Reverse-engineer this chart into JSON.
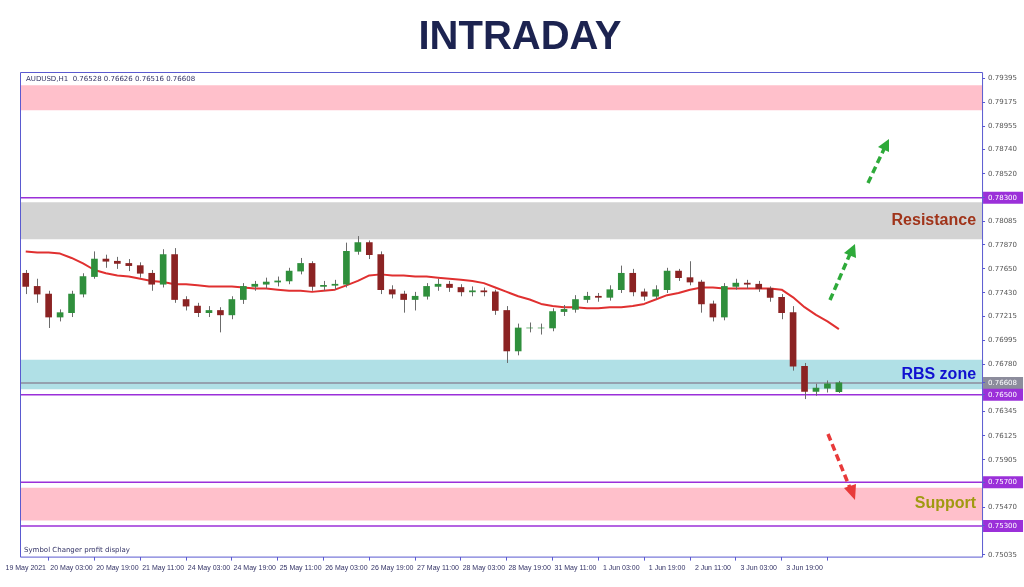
{
  "chart_data": {
    "type": "candlestick",
    "title": "INTRADAY",
    "categories": [
      "19 May 2021",
      null,
      null,
      null,
      "20 May 03:00",
      null,
      null,
      null,
      "20 May 19:00",
      null,
      null,
      null,
      "21 May 11:00",
      null,
      null,
      null,
      "24 May 03:00",
      null,
      null,
      null,
      "24 May 19:00",
      null,
      null,
      null,
      "25 May 11:00",
      null,
      null,
      null,
      "26 May 03:00",
      null,
      null,
      null,
      "26 May 19:00",
      null,
      null,
      null,
      "27 May 11:00",
      null,
      null,
      null,
      "28 May 03:00",
      null,
      null,
      null,
      "28 May 19:00",
      null,
      null,
      null,
      "31 May 11:00",
      null,
      null,
      null,
      "1 Jun 03:00",
      null,
      null,
      null,
      "1 Jun 19:00",
      null,
      null,
      null,
      "2 Jun 11:00",
      null,
      null,
      null,
      "3 Jun 03:00",
      null,
      null,
      null,
      "3 Jun 19:00",
      null,
      null,
      null
    ],
    "ohlc": [
      [
        0.7761,
        0.7764,
        0.7742,
        0.7749
      ],
      [
        0.7749,
        0.7756,
        0.7734,
        0.7742
      ],
      [
        0.7742,
        0.7745,
        0.7711,
        0.7721
      ],
      [
        0.7721,
        0.7728,
        0.7717,
        0.7725
      ],
      [
        0.7725,
        0.7745,
        0.7721,
        0.7742
      ],
      [
        0.7742,
        0.7761,
        0.7739,
        0.7758
      ],
      [
        0.7758,
        0.7781,
        0.7756,
        0.7774
      ],
      [
        0.7774,
        0.7778,
        0.7766,
        0.7772
      ],
      [
        0.7772,
        0.7776,
        0.7765,
        0.777
      ],
      [
        0.777,
        0.7774,
        0.7763,
        0.7768
      ],
      [
        0.7768,
        0.7771,
        0.7757,
        0.7761
      ],
      [
        0.7761,
        0.7764,
        0.7745,
        0.7751
      ],
      [
        0.7751,
        0.7783,
        0.7748,
        0.7778
      ],
      [
        0.7778,
        0.7784,
        0.7734,
        0.7737
      ],
      [
        0.7737,
        0.774,
        0.7727,
        0.7731
      ],
      [
        0.7731,
        0.7734,
        0.7721,
        0.7725
      ],
      [
        0.7725,
        0.7731,
        0.7721,
        0.7727
      ],
      [
        0.7727,
        0.773,
        0.7707,
        0.7723
      ],
      [
        0.7723,
        0.774,
        0.7719,
        0.7737
      ],
      [
        0.7737,
        0.7752,
        0.7733,
        0.7749
      ],
      [
        0.7749,
        0.7754,
        0.7745,
        0.7751
      ],
      [
        0.7751,
        0.7757,
        0.7747,
        0.7753
      ],
      [
        0.7753,
        0.7758,
        0.7749,
        0.7754
      ],
      [
        0.7754,
        0.7766,
        0.7751,
        0.7763
      ],
      [
        0.7763,
        0.7775,
        0.776,
        0.777
      ],
      [
        0.777,
        0.7772,
        0.7745,
        0.7749
      ],
      [
        0.7749,
        0.7754,
        0.7745,
        0.775
      ],
      [
        0.775,
        0.7755,
        0.7746,
        0.7751
      ],
      [
        0.7751,
        0.7789,
        0.7748,
        0.7781
      ],
      [
        0.7781,
        0.7795,
        0.7778,
        0.7789
      ],
      [
        0.7789,
        0.7791,
        0.7774,
        0.7778
      ],
      [
        0.7778,
        0.7781,
        0.7742,
        0.7746
      ],
      [
        0.7746,
        0.775,
        0.7738,
        0.7742
      ],
      [
        0.7742,
        0.7745,
        0.7725,
        0.7737
      ],
      [
        0.7737,
        0.7744,
        0.7727,
        0.774
      ],
      [
        0.774,
        0.7752,
        0.7737,
        0.7749
      ],
      [
        0.7749,
        0.7756,
        0.7745,
        0.7751
      ],
      [
        0.7751,
        0.7754,
        0.7744,
        0.7748
      ],
      [
        0.7748,
        0.7751,
        0.774,
        0.7744
      ],
      [
        0.7744,
        0.7749,
        0.774,
        0.7745
      ],
      [
        0.7745,
        0.7748,
        0.774,
        0.7744
      ],
      [
        0.7744,
        0.7746,
        0.7723,
        0.7727
      ],
      [
        0.7727,
        0.7731,
        0.7679,
        0.769
      ],
      [
        0.769,
        0.7715,
        0.7686,
        0.7711
      ],
      [
        0.7711,
        0.7716,
        0.7707,
        0.7711
      ],
      [
        0.7711,
        0.7715,
        0.7705,
        0.7711
      ],
      [
        0.7711,
        0.7729,
        0.7708,
        0.7726
      ],
      [
        0.7726,
        0.7732,
        0.7722,
        0.7728
      ],
      [
        0.7728,
        0.7741,
        0.7725,
        0.7737
      ],
      [
        0.7737,
        0.7744,
        0.7734,
        0.774
      ],
      [
        0.774,
        0.7743,
        0.7735,
        0.7739
      ],
      [
        0.7739,
        0.775,
        0.7736,
        0.7746
      ],
      [
        0.7746,
        0.7768,
        0.7743,
        0.7761
      ],
      [
        0.7761,
        0.7765,
        0.774,
        0.7744
      ],
      [
        0.7744,
        0.7747,
        0.7736,
        0.774
      ],
      [
        0.774,
        0.775,
        0.7737,
        0.7746
      ],
      [
        0.7746,
        0.7766,
        0.7743,
        0.7763
      ],
      [
        0.7763,
        0.7765,
        0.7754,
        0.7757
      ],
      [
        0.7757,
        0.7772,
        0.775,
        0.7753
      ],
      [
        0.7753,
        0.7755,
        0.7725,
        0.7733
      ],
      [
        0.7733,
        0.7736,
        0.7717,
        0.7721
      ],
      [
        0.7721,
        0.7752,
        0.7718,
        0.7749
      ],
      [
        0.7749,
        0.7756,
        0.7746,
        0.7752
      ],
      [
        0.7752,
        0.7755,
        0.7747,
        0.7751
      ],
      [
        0.7751,
        0.7754,
        0.7744,
        0.7747
      ],
      [
        0.7747,
        0.7749,
        0.7735,
        0.7739
      ],
      [
        0.7739,
        0.7742,
        0.7719,
        0.7725
      ],
      [
        0.7725,
        0.7731,
        0.7672,
        0.7676
      ],
      [
        0.7676,
        0.7679,
        0.7646,
        0.7653
      ],
      [
        0.7653,
        0.766,
        0.7649,
        0.7656
      ],
      [
        0.7656,
        0.7663,
        0.7652,
        0.766
      ],
      [
        0.76528,
        0.76626,
        0.76516,
        0.76608
      ]
    ],
    "series": [
      {
        "type": "line",
        "color": "#e03030",
        "values": [
          0.7781,
          0.778,
          0.778,
          0.7779,
          0.7775,
          0.777,
          0.7764,
          0.7761,
          0.7759,
          0.7758,
          0.7756,
          0.7754,
          0.7753,
          0.7751,
          0.7751,
          0.775,
          0.7749,
          0.7749,
          0.7749,
          0.7748,
          0.7747,
          0.7747,
          0.7746,
          0.7745,
          0.7745,
          0.7744,
          0.7745,
          0.7746,
          0.775,
          0.7754,
          0.7759,
          0.776,
          0.7759,
          0.7759,
          0.7758,
          0.7758,
          0.7757,
          0.7756,
          0.7755,
          0.7754,
          0.7752,
          0.7748,
          0.7744,
          0.774,
          0.7737,
          0.7733,
          0.7731,
          0.773,
          0.773,
          0.7729,
          0.7729,
          0.773,
          0.773,
          0.7731,
          0.7733,
          0.7737,
          0.7741,
          0.7743,
          0.7746,
          0.7748,
          0.7748,
          0.7747,
          0.7747,
          0.7747,
          0.7747,
          0.7747,
          0.7746,
          0.7739,
          0.773,
          0.7723,
          0.7717,
          0.771
        ]
      }
    ],
    "ylim": [
      0.7502,
      0.7945
    ],
    "yticks": [
      0.79395,
      0.79175,
      0.78955,
      {
        "value": 0.7874,
        "label": "0.78740"
      },
      {
        "value": 0.7852,
        "label": "0.78520"
      },
      {
        "value": 0.783,
        "label": "0.78300"
      },
      0.78085,
      {
        "value": 0.7787,
        "label": "0.77870"
      },
      {
        "value": 0.7765,
        "label": "0.77650"
      },
      {
        "value": 0.7743,
        "label": "0.77430"
      },
      0.77215,
      0.76995,
      {
        "value": 0.7678,
        "label": "0.76780"
      },
      0.76608,
      {
        "value": 0.765,
        "label": "0.76500"
      },
      0.76345,
      0.76125,
      0.75905,
      {
        "value": 0.757,
        "label": "0.75700"
      },
      {
        "value": 0.7547,
        "label": "0.75470"
      },
      {
        "value": 0.753,
        "label": "0.75300"
      },
      0.75035
    ],
    "grid": false,
    "legend": false,
    "marker": "none",
    "bands": [
      {
        "axis": "y",
        "from": 0.791,
        "to": 0.7933,
        "color": "#ffc0cb"
      },
      {
        "axis": "y",
        "from": 0.7792,
        "to": 0.7826,
        "color": "#d3d3d3",
        "label": "Resistance"
      },
      {
        "axis": "y",
        "from": 0.7655,
        "to": 0.7682,
        "color": "#b0e0e6",
        "label": "RBS zone"
      },
      {
        "axis": "y",
        "from": 0.7535,
        "to": 0.7565,
        "color": "#ffc0cb",
        "label": "Support"
      }
    ],
    "ref_lines": [
      {
        "axis": "y",
        "value": 0.783,
        "color": "#9b30d9"
      },
      {
        "axis": "y",
        "value": 0.76608,
        "color": "#8c8c9c"
      },
      {
        "axis": "y",
        "value": 0.765,
        "color": "#9b30d9"
      },
      {
        "axis": "y",
        "value": 0.757,
        "color": "#9b30d9"
      },
      {
        "axis": "y",
        "value": 0.753,
        "color": "#9b30d9"
      }
    ],
    "annotations": [
      "AUDUSD,H1  0.76528 0.76626 0.76516 0.76608",
      "Symbol Changer profit display"
    ]
  }
}
